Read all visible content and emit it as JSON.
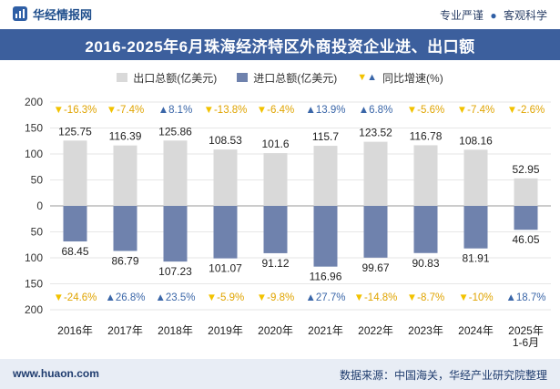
{
  "header": {
    "brand": "华经情报网",
    "tagline_left": "专业严谨",
    "tagline_sep": "●",
    "tagline_right": "客观科学"
  },
  "footer": {
    "site": "www.huaon.com",
    "source": "数据来源：中国海关，华经产业研究院整理"
  },
  "colors": {
    "export": "#d9d9d9",
    "import": "#6f82ad",
    "up": "#3a66a8",
    "down": "#f2c200",
    "title_bg": "#3c5f9d"
  },
  "chart_data": {
    "type": "bar",
    "title": "2016-2025年6月珠海经济特区外商投资企业进、出口额",
    "legend": [
      "出口总额(亿美元)",
      "进口总额(亿美元)",
      "同比增速(%)"
    ],
    "categories": [
      "2016年",
      "2017年",
      "2018年",
      "2019年",
      "2020年",
      "2021年",
      "2022年",
      "2023年",
      "2024年",
      "2025年\n1-6月"
    ],
    "series": [
      {
        "name": "出口总额(亿美元)",
        "values": [
          125.75,
          116.39,
          125.86,
          108.53,
          101.6,
          115.7,
          123.52,
          116.78,
          108.16,
          52.95
        ],
        "labels": [
          "125.75",
          "116.39",
          "125.86",
          "108.53",
          "101.6",
          "115.7",
          "123.52",
          "116.78",
          "108.16",
          "52.95"
        ],
        "growth": [
          -16.3,
          -7.4,
          8.1,
          -13.8,
          -6.4,
          13.9,
          6.8,
          -5.6,
          -7.4,
          -2.6
        ],
        "growth_labels": [
          "-16.3%",
          "-7.4%",
          "8.1%",
          "-13.8%",
          "-6.4%",
          "13.9%",
          "6.8%",
          "-5.6%",
          "-7.4%",
          "-2.6%"
        ]
      },
      {
        "name": "进口总额(亿美元)",
        "values": [
          68.45,
          86.79,
          107.23,
          101.07,
          91.12,
          116.96,
          99.67,
          90.83,
          81.91,
          46.05
        ],
        "labels": [
          "68.45",
          "86.79",
          "107.23",
          "101.07",
          "91.12",
          "116.96",
          "99.67",
          "90.83",
          "81.91",
          "46.05"
        ],
        "growth": [
          -24.6,
          26.8,
          23.5,
          -5.9,
          -9.8,
          27.7,
          -14.8,
          -8.7,
          -10,
          18.7
        ],
        "growth_labels": [
          "-24.6%",
          "26.8%",
          "23.5%",
          "-5.9%",
          "-9.8%",
          "27.7%",
          "-14.8%",
          "-8.7%",
          "-10%",
          "18.7%"
        ]
      }
    ],
    "yticks": [
      "200",
      "150",
      "100",
      "50",
      "0",
      "50",
      "100",
      "150",
      "200"
    ],
    "ylim": [
      -200,
      200
    ],
    "xlabel": "",
    "ylabel": ""
  }
}
